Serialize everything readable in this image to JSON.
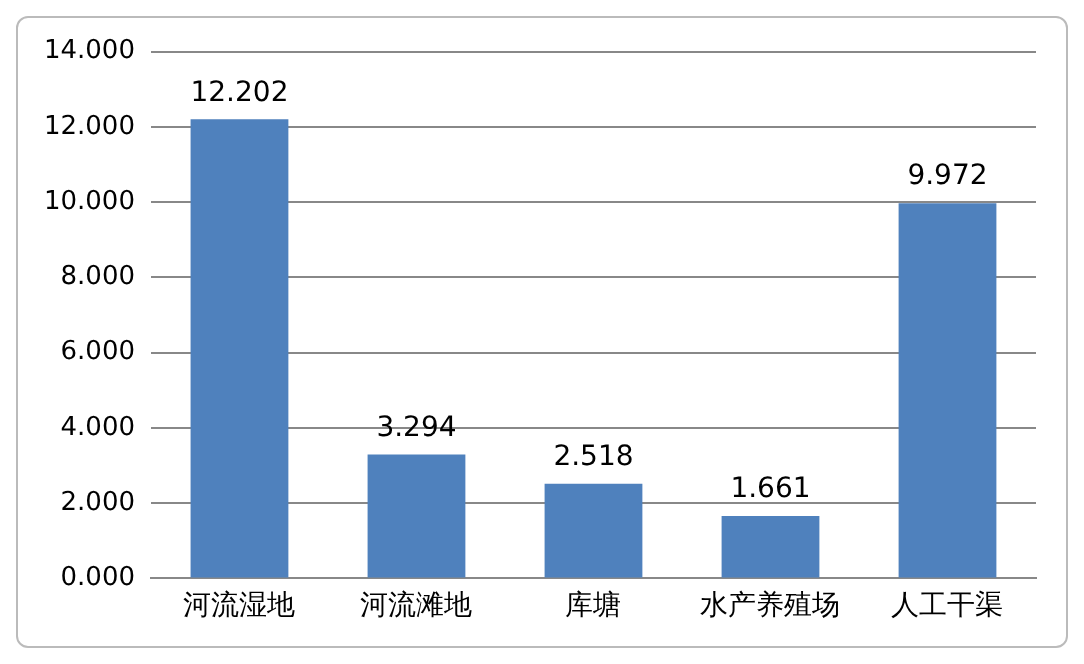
{
  "chart_data": {
    "type": "bar",
    "categories": [
      "河流湿地",
      "河流滩地",
      "库塘",
      "水产养殖场",
      "人工干渠"
    ],
    "values": [
      12.202,
      3.294,
      2.518,
      1.661,
      9.972
    ],
    "color": "#4f81bd",
    "ylim": [
      0,
      14
    ],
    "yticks": [
      {
        "value": 0,
        "label": "0.000"
      },
      {
        "value": 2,
        "label": "2.000"
      },
      {
        "value": 4,
        "label": "4.000"
      },
      {
        "value": 6,
        "label": "6.000"
      },
      {
        "value": 8,
        "label": "8.000"
      },
      {
        "value": 10,
        "label": "10.000"
      },
      {
        "value": 12,
        "label": "12.000"
      },
      {
        "value": 14,
        "label": "14.000"
      }
    ],
    "grid": "y",
    "data_labels": true,
    "legend": false
  }
}
